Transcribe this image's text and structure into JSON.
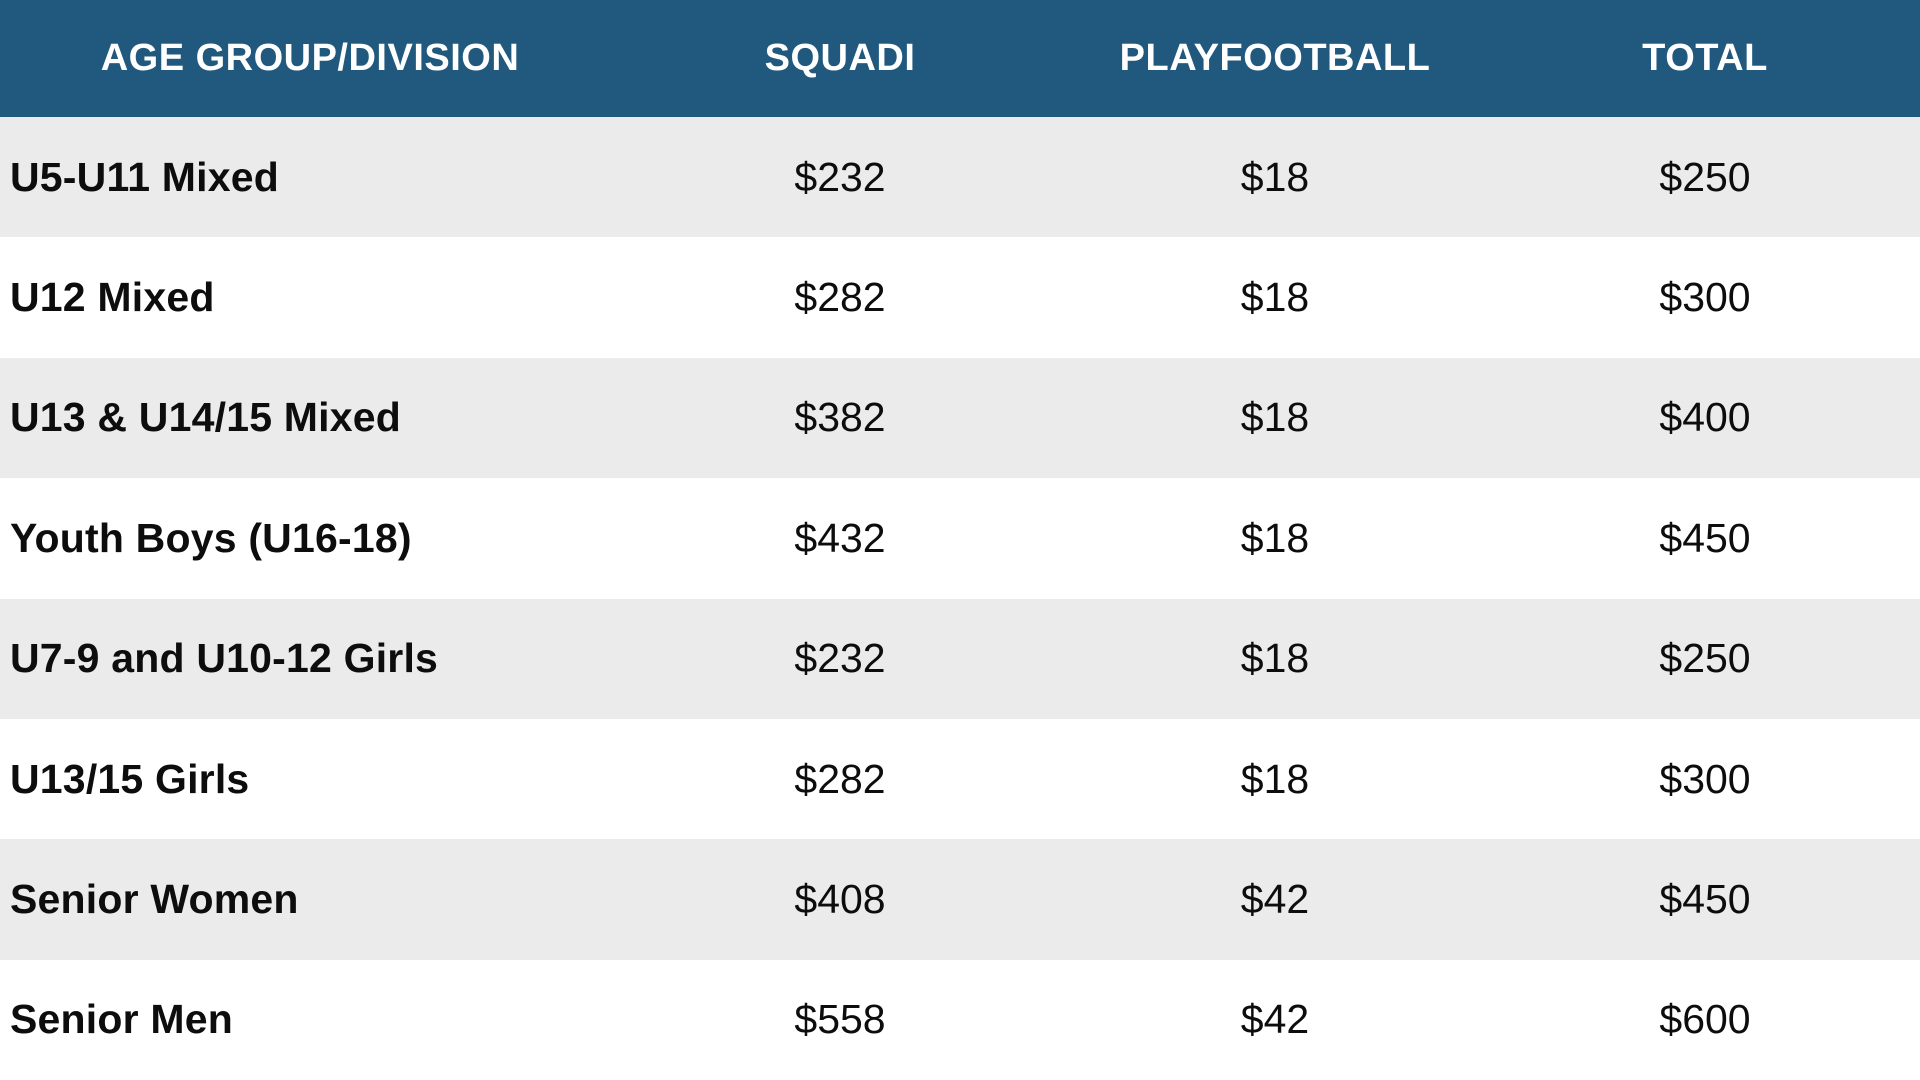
{
  "chart_data": {
    "type": "table",
    "columns": [
      "AGE GROUP/DIVISION",
      "SQUADI",
      "PLAYFOOTBALL",
      "TOTAL"
    ],
    "rows": [
      [
        "U5-U11 Mixed",
        "$232",
        "$18",
        "$250"
      ],
      [
        "U12 Mixed",
        "$282",
        "$18",
        "$300"
      ],
      [
        "U13 & U14/15 Mixed",
        "$382",
        "$18",
        "$400"
      ],
      [
        "Youth Boys (U16-18)",
        "$432",
        "$18",
        "$450"
      ],
      [
        "U7-9 and U10-12 Girls",
        "$232",
        "$18",
        "$250"
      ],
      [
        "U13/15 Girls",
        "$282",
        "$18",
        "$300"
      ],
      [
        "Senior Women",
        "$408",
        "$42",
        "$450"
      ],
      [
        "Senior Men",
        "$558",
        "$42",
        "$600"
      ]
    ],
    "layout": {
      "header_bg": "#20597d",
      "header_text_color": "#ffffff",
      "alt_row_bg": "#ebebeb",
      "row_bg": "#ffffff",
      "body_text_color": "#0d0d0d",
      "striping": "first data row shaded, then alternating",
      "first_column_align": "left",
      "value_columns_align": "center"
    }
  }
}
